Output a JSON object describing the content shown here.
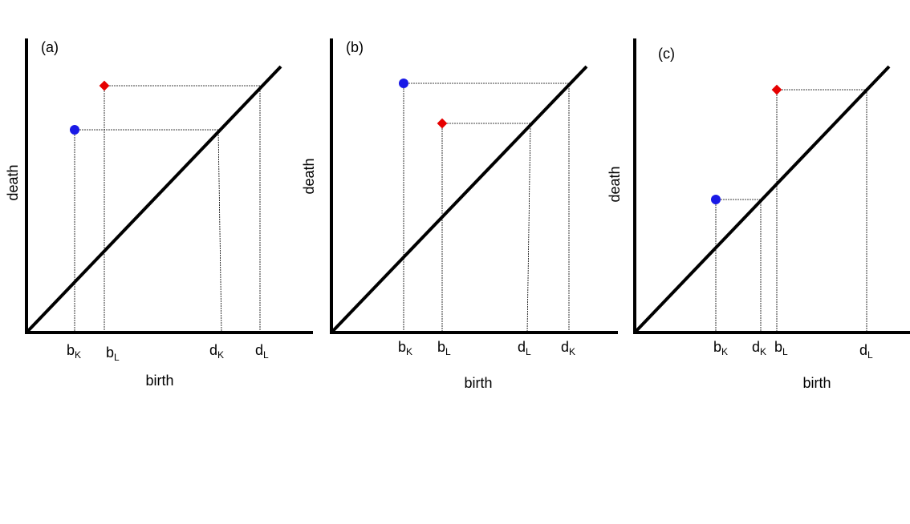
{
  "panels": [
    {
      "label": "(a)",
      "x_label": "birth",
      "y_label": "death",
      "ticks": [
        {
          "base": "b",
          "sub": "K"
        },
        {
          "base": "b",
          "sub": "L"
        },
        {
          "base": "d",
          "sub": "K"
        },
        {
          "base": "d",
          "sub": "L"
        }
      ]
    },
    {
      "label": "(b)",
      "x_label": "birth",
      "y_label": "death",
      "ticks": [
        {
          "base": "b",
          "sub": "K"
        },
        {
          "base": "b",
          "sub": "L"
        },
        {
          "base": "d",
          "sub": "L"
        },
        {
          "base": "d",
          "sub": "K"
        }
      ]
    },
    {
      "label": "(c)",
      "x_label": "birth",
      "y_label": "death",
      "ticks": [
        {
          "base": "b",
          "sub": "K"
        },
        {
          "base": "d",
          "sub": "K"
        },
        {
          "base": "b",
          "sub": "L"
        },
        {
          "base": "d",
          "sub": "L"
        }
      ]
    }
  ]
}
